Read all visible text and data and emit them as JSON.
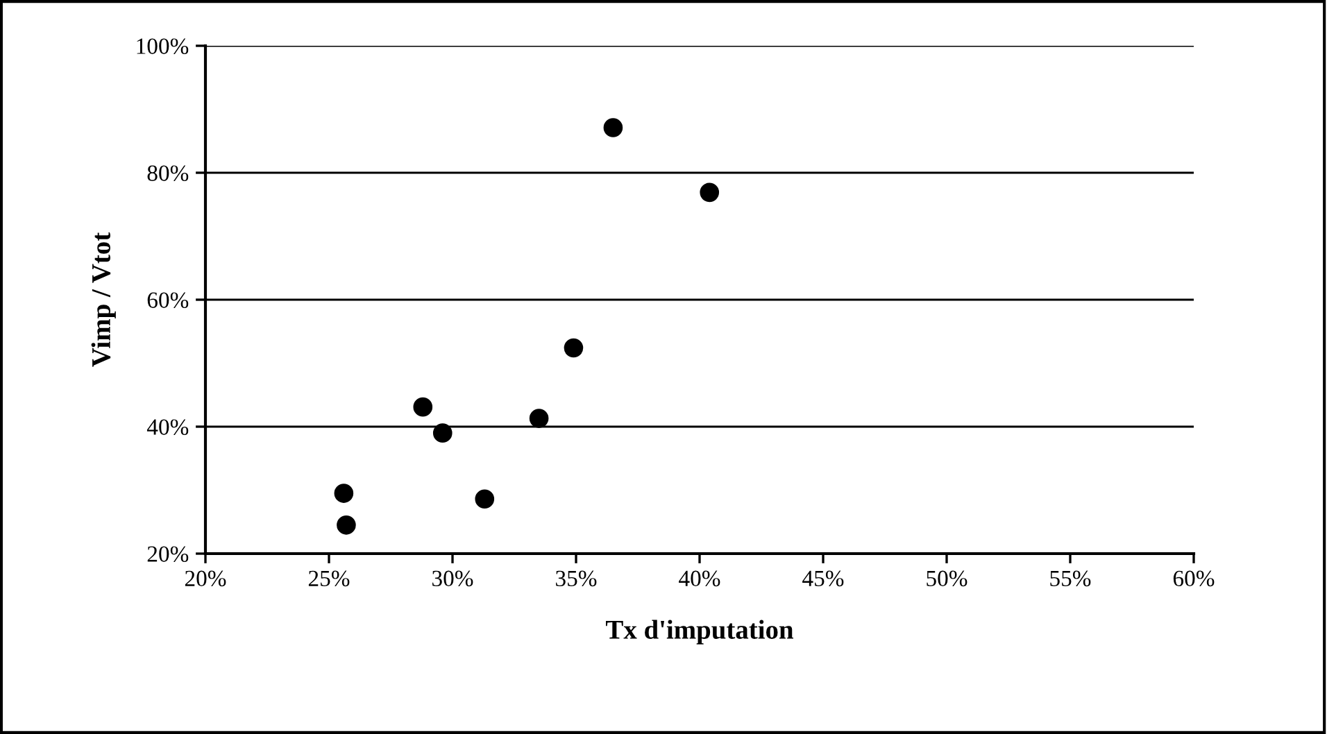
{
  "chart_data": {
    "type": "scatter",
    "xlabel": "Tx d'imputation",
    "ylabel": "Vimp / Vtot",
    "x": [
      36.5,
      40.4,
      34.9,
      28.8,
      29.6,
      33.5,
      25.6,
      25.7,
      31.3
    ],
    "series": [
      {
        "color": "#000000",
        "values": [
          87.1,
          76.9,
          52.4,
          43.1,
          39.0,
          41.3,
          29.5,
          24.5,
          28.6
        ]
      }
    ],
    "xlim": [
      20,
      60
    ],
    "ylim": [
      20,
      100
    ],
    "xticks": [
      {
        "value": 20,
        "label": "20%"
      },
      {
        "value": 25,
        "label": "25%"
      },
      {
        "value": 30,
        "label": "30%"
      },
      {
        "value": 35,
        "label": "35%"
      },
      {
        "value": 40,
        "label": "40%"
      },
      {
        "value": 45,
        "label": "45%"
      },
      {
        "value": 50,
        "label": "50%"
      },
      {
        "value": 55,
        "label": "55%"
      },
      {
        "value": 60,
        "label": "60%"
      }
    ],
    "yticks": [
      {
        "value": 20,
        "label": "20%"
      },
      {
        "value": 40,
        "label": "40%"
      },
      {
        "value": 60,
        "label": "60%"
      },
      {
        "value": 80,
        "label": "80%"
      },
      {
        "value": 100,
        "label": "100%"
      }
    ],
    "grid": "y",
    "marker": "circle"
  }
}
